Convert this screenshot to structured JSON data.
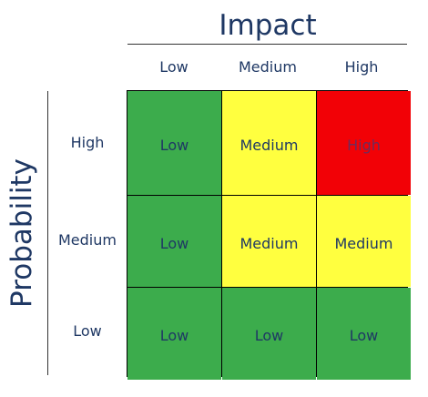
{
  "impact_title": "Impact",
  "probability_title": "Probability",
  "columns": [
    "Low",
    "Medium",
    "High"
  ],
  "rows": [
    "High",
    "Medium",
    "Low"
  ],
  "colors": {
    "low": "#3cac4c",
    "medium": "#ffff3f",
    "high": "#f20106",
    "text": "#1f3864"
  },
  "cells": [
    [
      {
        "label": "Low",
        "level": "low"
      },
      {
        "label": "Medium",
        "level": "medium"
      },
      {
        "label": "High",
        "level": "high"
      }
    ],
    [
      {
        "label": "Low",
        "level": "low"
      },
      {
        "label": "Medium",
        "level": "medium"
      },
      {
        "label": "Medium",
        "level": "medium"
      }
    ],
    [
      {
        "label": "Low",
        "level": "low"
      },
      {
        "label": "Low",
        "level": "low"
      },
      {
        "label": "Low",
        "level": "low"
      }
    ]
  ]
}
